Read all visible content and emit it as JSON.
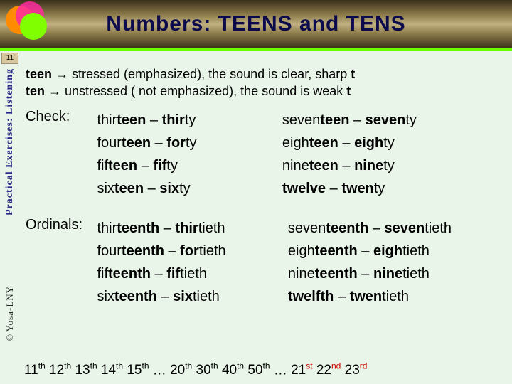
{
  "title": "Numbers:  TEENS and TENS",
  "page_number": "11",
  "sidebar_label": "Practical Exercises: Listening",
  "credit": "©Yosa-LNY",
  "colors": {
    "background": "#e8f5e8",
    "title_color": "#0a0a4d",
    "sidebar_color": "#2a2a8a",
    "red": "#cc0000",
    "band_green": "#6aff00"
  },
  "intro": {
    "line1_prefix": "teen",
    "line1_arrow": "→",
    "line1_text": " stressed (emphasized), the sound is clear, sharp ",
    "line1_suffix": "t",
    "line2_prefix": "ten",
    "line2_arrow": "→",
    "line2_text": " unstressed ( not emphasized), the sound is weak ",
    "line2_suffix": "t"
  },
  "check_label": "Check:",
  "ordinals_label": "Ordinals:",
  "check_pairs_left": [
    {
      "teen_pre": "thir",
      "teen_bold": "teen",
      "dash": " – ",
      "ten_bold": "thir",
      "ten_post": "ty"
    },
    {
      "teen_pre": "four",
      "teen_bold": "teen",
      "dash": " – ",
      "ten_bold": "for",
      "ten_post": "ty"
    },
    {
      "teen_pre": "fif",
      "teen_bold": "teen",
      "dash": " – ",
      "ten_bold": "fif",
      "ten_post": "ty"
    },
    {
      "teen_pre": "six",
      "teen_bold": "teen",
      "dash": " – ",
      "ten_bold": "six",
      "ten_post": "ty"
    }
  ],
  "check_pairs_right": [
    {
      "teen_pre": "seven",
      "teen_bold": "teen",
      "dash": " – ",
      "ten_bold": "seven",
      "ten_post": "ty"
    },
    {
      "teen_pre": "eigh",
      "teen_bold": "teen",
      "dash": " – ",
      "ten_bold": "eigh",
      "ten_post": "ty"
    },
    {
      "teen_pre": "nine",
      "teen_bold": "teen",
      "dash": " – ",
      "ten_bold": "nine",
      "ten_post": "ty"
    },
    {
      "teen_pre": "",
      "teen_bold": "twelve",
      "dash": " – ",
      "ten_bold": "twen",
      "ten_post": "ty"
    }
  ],
  "ord_pairs_left": [
    {
      "teen_pre": "thir",
      "teen_bold": "teenth",
      "dash": " – ",
      "ten_bold": "thir",
      "ten_post": "tieth"
    },
    {
      "teen_pre": "four",
      "teen_bold": "teenth",
      "dash": " – ",
      "ten_bold": "for",
      "ten_post": "tieth"
    },
    {
      "teen_pre": "fif",
      "teen_bold": "teenth",
      "dash": " – ",
      "ten_bold": "fif",
      "ten_post": "tieth"
    },
    {
      "teen_pre": "six",
      "teen_bold": "teenth",
      "dash": " – ",
      "ten_bold": "six",
      "ten_post": "tieth"
    }
  ],
  "ord_pairs_right": [
    {
      "teen_pre": "seven",
      "teen_bold": "teenth",
      "dash": " – ",
      "ten_bold": "seven",
      "ten_post": "tieth"
    },
    {
      "teen_pre": "eigh",
      "teen_bold": "teenth",
      "dash": " – ",
      "ten_bold": "eigh",
      "ten_post": "tieth"
    },
    {
      "teen_pre": "nine",
      "teen_bold": "teenth",
      "dash": " – ",
      "ten_bold": "nine",
      "ten_post": "tieth"
    },
    {
      "teen_pre": "",
      "teen_bold": "twelfth",
      "dash": " – ",
      "ten_bold": "twen",
      "ten_post": "tieth"
    }
  ],
  "footer": {
    "items": [
      {
        "n": "11",
        "sup": "th",
        "red": false
      },
      {
        "n": "12",
        "sup": "th",
        "red": false
      },
      {
        "n": "13",
        "sup": "th",
        "red": false
      },
      {
        "n": "14",
        "sup": "th",
        "red": false
      },
      {
        "n": "15",
        "sup": "th",
        "red": false
      },
      {
        "n": "…",
        "sup": "",
        "red": false
      },
      {
        "n": "20",
        "sup": "th",
        "red": false
      },
      {
        "n": "30",
        "sup": "th",
        "red": false
      },
      {
        "n": "40",
        "sup": "th",
        "red": false
      },
      {
        "n": "50",
        "sup": "th",
        "red": false
      },
      {
        "n": "…",
        "sup": "",
        "red": false
      },
      {
        "n": "21",
        "sup": "st",
        "red": true
      },
      {
        "n": "22",
        "sup": "nd",
        "red": true
      },
      {
        "n": "23",
        "sup": "rd",
        "red": true
      }
    ]
  }
}
